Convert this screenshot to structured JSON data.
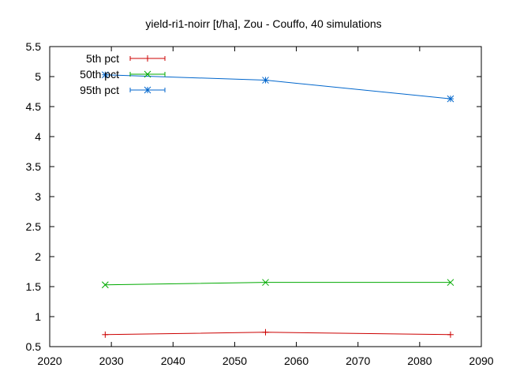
{
  "chart_data": {
    "type": "line",
    "title": "yield-ri1-noirr [t/ha], Zou - Couffo, 40 simulations",
    "xlabel": "",
    "ylabel": "",
    "xlim": [
      2020,
      2090
    ],
    "ylim": [
      0.5,
      5.5
    ],
    "xticks": [
      2020,
      2030,
      2040,
      2050,
      2060,
      2070,
      2080,
      2090
    ],
    "yticks": [
      0.5,
      1,
      1.5,
      2,
      2.5,
      3,
      3.5,
      4,
      4.5,
      5,
      5.5
    ],
    "x_tick_labels": [
      "2020",
      "2030",
      "2040",
      "2050",
      "2060",
      "2070",
      "2080",
      "2090"
    ],
    "y_tick_labels": [
      "0.5",
      "1",
      "1.5",
      "2",
      "2.5",
      "3",
      "3.5",
      "4",
      "4.5",
      "5",
      "5.5"
    ],
    "legend_position": "top-left",
    "grid": false,
    "series": [
      {
        "name": "5th pct",
        "color": "#cc0000",
        "marker": "plus",
        "x": [
          2029,
          2055,
          2085
        ],
        "y": [
          0.7,
          0.74,
          0.7
        ]
      },
      {
        "name": "50th pct",
        "color": "#00aa00",
        "marker": "cross",
        "x": [
          2029,
          2055,
          2085
        ],
        "y": [
          1.53,
          1.57,
          1.57
        ]
      },
      {
        "name": "95th pct",
        "color": "#0066cc",
        "marker": "star",
        "x": [
          2029,
          2055,
          2085
        ],
        "y": [
          5.03,
          4.94,
          4.63
        ]
      }
    ]
  }
}
